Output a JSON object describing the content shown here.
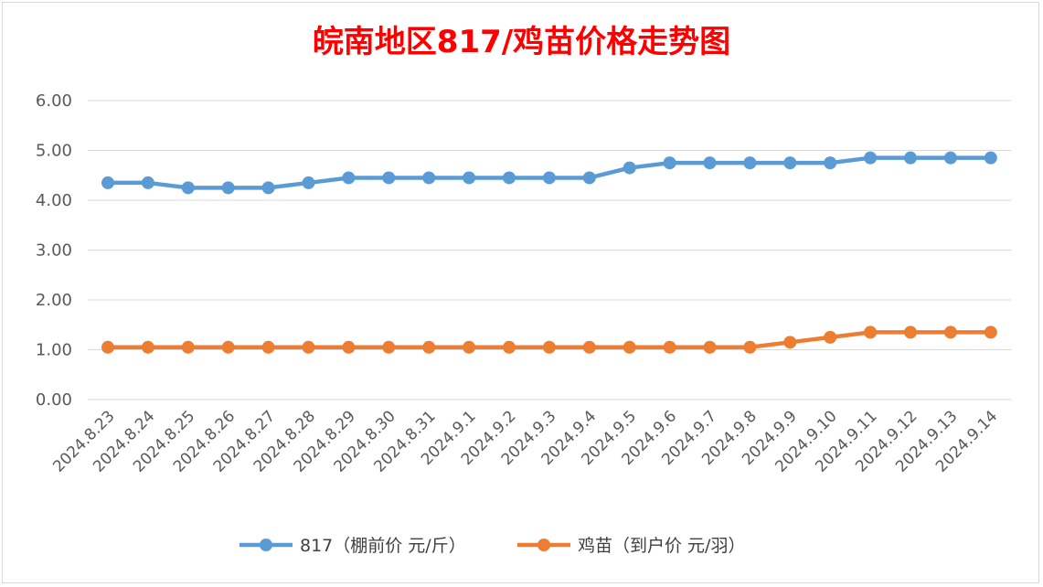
{
  "chart_data": {
    "type": "line",
    "title": "皖南地区817/鸡苗价格走势图",
    "title_color": "#ff0000",
    "categories": [
      "2024.8.23",
      "2024.8.24",
      "2024.8.25",
      "2024.8.26",
      "2024.8.27",
      "2024.8.28",
      "2024.8.29",
      "2024.8.30",
      "2024.8.31",
      "2024.9.1",
      "2024.9.2",
      "2024.9.3",
      "2024.9.4",
      "2024.9.5",
      "2024.9.6",
      "2024.9.7",
      "2024.9.8",
      "2024.9.9",
      "2024.9.10",
      "2024.9.11",
      "2024.9.12",
      "2024.9.13",
      "2024.9.14"
    ],
    "series": [
      {
        "name": "817（棚前价 元/斤）",
        "color": "#5b9bd5",
        "values": [
          4.35,
          4.35,
          4.25,
          4.25,
          4.25,
          4.35,
          4.45,
          4.45,
          4.45,
          4.45,
          4.45,
          4.45,
          4.45,
          4.65,
          4.75,
          4.75,
          4.75,
          4.75,
          4.75,
          4.85,
          4.85,
          4.85,
          4.85
        ]
      },
      {
        "name": "鸡苗（到户价 元/羽）",
        "color": "#ed7d31",
        "values": [
          1.05,
          1.05,
          1.05,
          1.05,
          1.05,
          1.05,
          1.05,
          1.05,
          1.05,
          1.05,
          1.05,
          1.05,
          1.05,
          1.05,
          1.05,
          1.05,
          1.05,
          1.15,
          1.25,
          1.35,
          1.35,
          1.35,
          1.35
        ]
      }
    ],
    "ylim": [
      0,
      6
    ],
    "yticks": [
      "0.00",
      "1.00",
      "2.00",
      "3.00",
      "4.00",
      "5.00",
      "6.00"
    ],
    "grid": true,
    "legend_position": "bottom"
  }
}
